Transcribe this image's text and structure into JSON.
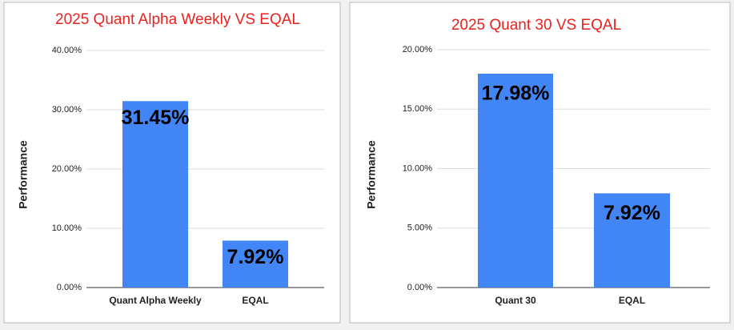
{
  "chart_data": [
    {
      "type": "bar",
      "title": "2025 Quant Alpha Weekly VS EQAL",
      "y_label": "Performance",
      "categories": [
        "Quant Alpha Weekly",
        "EQAL"
      ],
      "values": [
        31.45,
        7.92
      ],
      "value_labels": [
        "31.45%",
        "7.92%"
      ],
      "color": "#4285f4",
      "ylim": [
        0,
        40
      ],
      "yticks": [
        {
          "value": 0,
          "label": "0.00%"
        },
        {
          "value": 10,
          "label": "10.00%"
        },
        {
          "value": 20,
          "label": "20.00%"
        },
        {
          "value": 30,
          "label": "30.00%"
        },
        {
          "value": 40,
          "label": "40.00%"
        }
      ],
      "grid": true
    },
    {
      "type": "bar",
      "title": "2025 Quant 30 VS EQAL",
      "y_label": "Performance",
      "categories": [
        "Quant 30",
        "EQAL"
      ],
      "values": [
        17.98,
        7.92
      ],
      "value_labels": [
        "17.98%",
        "7.92%"
      ],
      "color": "#4285f4",
      "ylim": [
        0,
        20
      ],
      "yticks": [
        {
          "value": 0,
          "label": "0.00%"
        },
        {
          "value": 5,
          "label": "5.00%"
        },
        {
          "value": 10,
          "label": "10.00%"
        },
        {
          "value": 15,
          "label": "15.00%"
        },
        {
          "value": 20,
          "label": "20.00%"
        }
      ],
      "grid": true
    }
  ]
}
